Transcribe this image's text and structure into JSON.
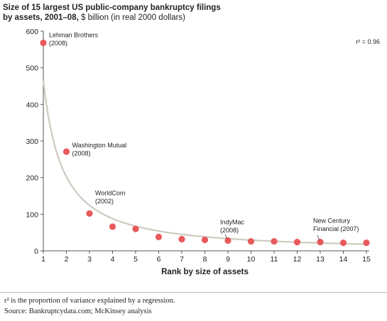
{
  "title": "Size of 15 largest US public-company bankruptcy filings",
  "subtitle_bold": "by assets, 2001–08,",
  "subtitle_rest": " $ billion (in real 2000 dollars)",
  "footnote": "r² is the proportion of variance explained by a regression.",
  "source": "Source: Bankruptcydata.com; McKinsey analysis",
  "colors": {
    "point": "#e8595c",
    "curve": "#cfcac0",
    "axis": "#555555"
  },
  "chart_data": {
    "type": "scatter",
    "xlabel": "Rank by size of assets",
    "ylabel": "",
    "xlim": [
      1,
      15
    ],
    "ylim": [
      0,
      600
    ],
    "x_ticks": [
      1,
      2,
      3,
      4,
      5,
      6,
      7,
      8,
      9,
      10,
      11,
      12,
      13,
      14,
      15
    ],
    "y_ticks": [
      0,
      100,
      200,
      300,
      400,
      500,
      600
    ],
    "r2_label": "r² = 0.96",
    "points": [
      {
        "x": 1,
        "y": 568
      },
      {
        "x": 2,
        "y": 271
      },
      {
        "x": 3,
        "y": 102
      },
      {
        "x": 4,
        "y": 66
      },
      {
        "x": 5,
        "y": 60
      },
      {
        "x": 6,
        "y": 38
      },
      {
        "x": 7,
        "y": 32
      },
      {
        "x": 8,
        "y": 30
      },
      {
        "x": 9,
        "y": 28
      },
      {
        "x": 10,
        "y": 26
      },
      {
        "x": 11,
        "y": 26
      },
      {
        "x": 12,
        "y": 24
      },
      {
        "x": 13,
        "y": 24
      },
      {
        "x": 14,
        "y": 22
      },
      {
        "x": 15,
        "y": 22
      }
    ],
    "annotations": [
      {
        "x": 1,
        "lines": [
          "Lehman Brothers",
          "(2008)"
        ]
      },
      {
        "x": 2,
        "lines": [
          "Washington Mutual",
          "(2008)"
        ]
      },
      {
        "x": 3,
        "lines": [
          "WorldCom",
          "(2002)"
        ]
      },
      {
        "x": 9,
        "lines": [
          "IndyMac",
          "(2008)"
        ]
      },
      {
        "x": 13,
        "lines": [
          "New Century",
          "Financial (2007)"
        ]
      }
    ],
    "trend": {
      "type": "power",
      "a": 465,
      "b": -1.2
    },
    "grid": false,
    "legend": "none"
  }
}
